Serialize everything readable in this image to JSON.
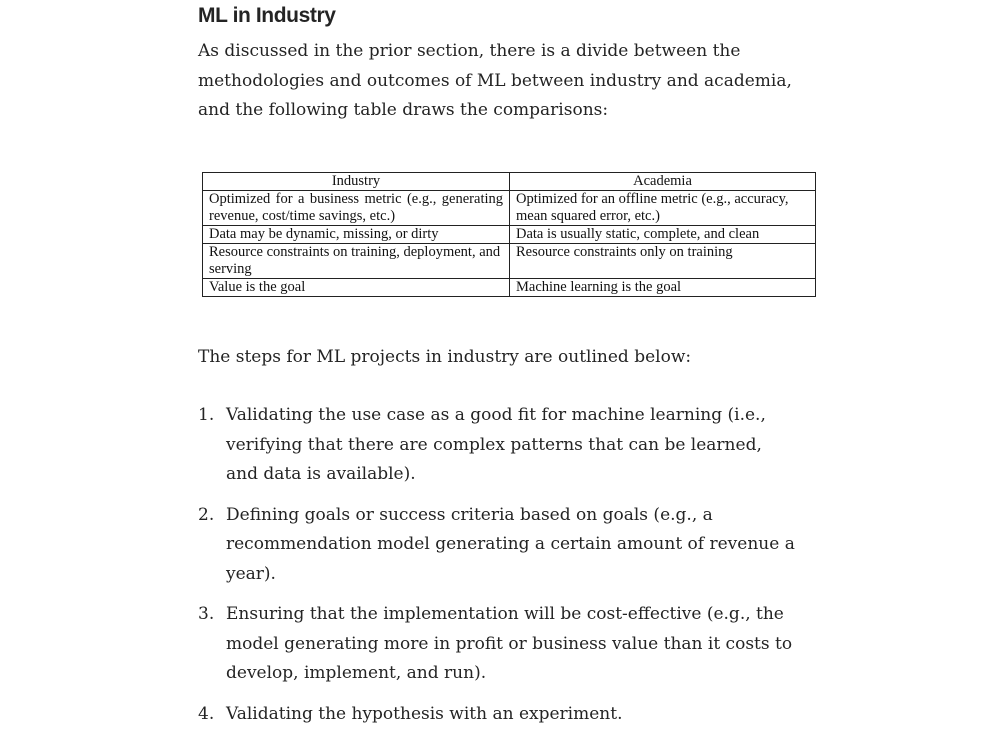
{
  "heading": "ML in Industry",
  "intro": "As discussed in the prior section, there is a divide between the methodologies and outcomes of ML between industry and academia, and the following table draws the comparisons:",
  "table": {
    "headers": [
      "Industry",
      "Academia"
    ],
    "rows": [
      [
        "Optimized for a business metric (e.g., generating revenue, cost/time savings, etc.)",
        "Optimized for an offline metric (e.g., accuracy, mean squared error, etc.)"
      ],
      [
        "Data may be dynamic, missing, or dirty",
        "Data is usually static, complete, and clean"
      ],
      [
        "Resource constraints on training, deployment, and serving",
        "Resource constraints only on training"
      ],
      [
        "Value is the goal",
        "Machine learning is the goal"
      ]
    ]
  },
  "steps_intro": "The steps for ML projects in industry are outlined below:",
  "steps": [
    {
      "num": "1.",
      "text": "Validating the use case as a good fit for machine learning (i.e., verifying that there are complex patterns that can be learned, and data is available)."
    },
    {
      "num": "2.",
      "text": "Defining goals or success criteria based on goals (e.g., a recommendation model generating a certain amount of revenue a year)."
    },
    {
      "num": "3.",
      "text": "Ensuring that the implementation will be cost-effective (e.g., the model generating more in profit or business value than it costs to develop, implement, and run)."
    },
    {
      "num": "4.",
      "text": "Validating the hypothesis with an experiment."
    }
  ]
}
